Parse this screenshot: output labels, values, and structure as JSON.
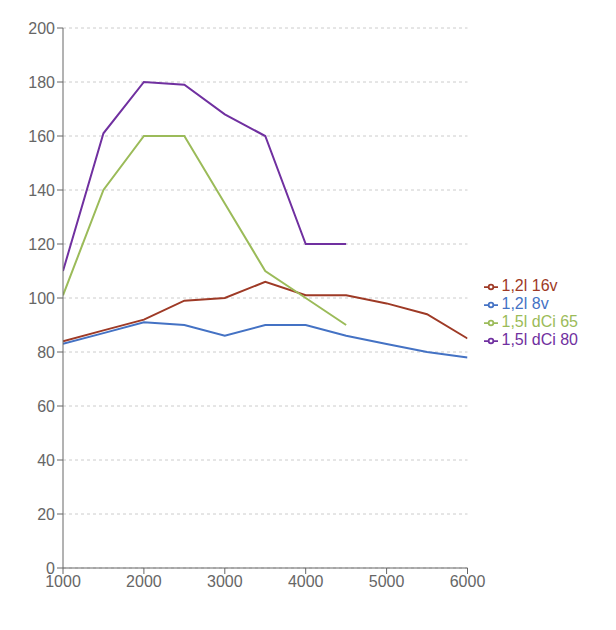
{
  "chart_data": {
    "type": "line",
    "x": [
      1000,
      1500,
      2000,
      2500,
      3000,
      3500,
      4000,
      4500,
      5000,
      5500,
      6000
    ],
    "series": [
      {
        "name": "1,2l 8v",
        "color": "#4472C4",
        "values": [
          83,
          87,
          91,
          90,
          86,
          90,
          90,
          86,
          83,
          80,
          78
        ]
      },
      {
        "name": "1,2l 16v",
        "color": "#9E3A26",
        "values": [
          84,
          88,
          92,
          99,
          100,
          106,
          101,
          101,
          98,
          94,
          85
        ]
      },
      {
        "name": "1,5l dCi 65",
        "color": "#9BBB59",
        "values": [
          101,
          140,
          160,
          160,
          135,
          110,
          100,
          90,
          null,
          null,
          null
        ]
      },
      {
        "name": "1,5l dCi 80",
        "color": "#7030A0",
        "values": [
          110,
          161,
          180,
          179,
          168,
          160,
          120,
          120,
          null,
          null,
          null
        ]
      }
    ],
    "xlim": [
      1000,
      6000
    ],
    "ylim": [
      0,
      200
    ],
    "xticks": [
      1000,
      2000,
      3000,
      4000,
      5000,
      6000
    ],
    "yticks": [
      0,
      20,
      40,
      60,
      80,
      100,
      120,
      140,
      160,
      180,
      200
    ],
    "grid": true,
    "legend": "right"
  }
}
